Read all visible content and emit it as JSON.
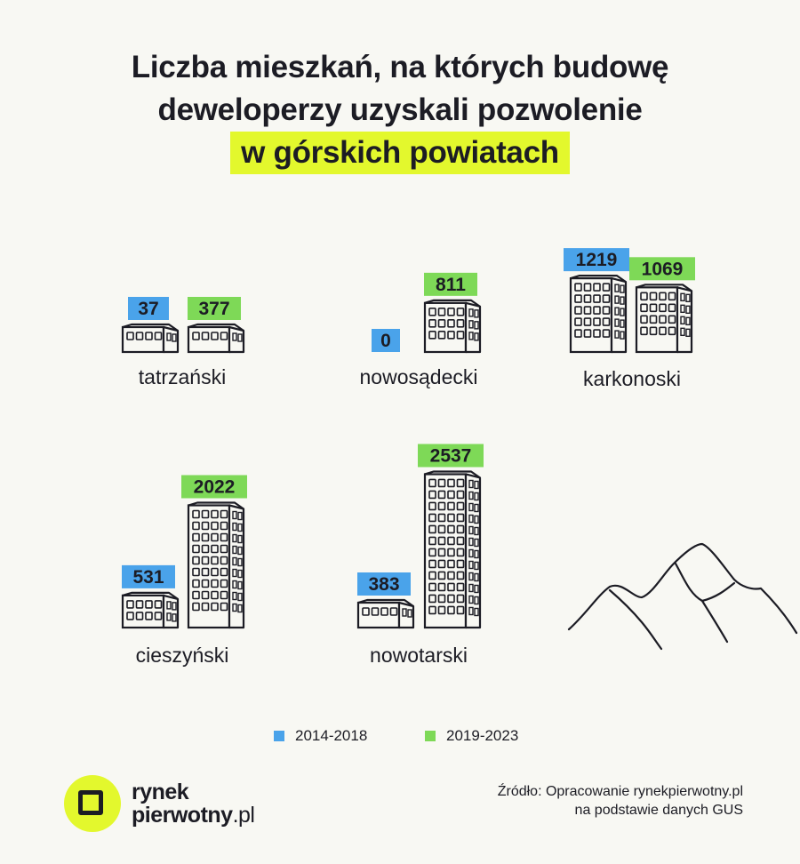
{
  "title": {
    "line1": "Liczba mieszkań, na których budowę",
    "line2": "deweloperzy uzyskali pozwolenie",
    "highlight": "w górskich powiatach"
  },
  "colors": {
    "series_2014_2018": "#4aa3ea",
    "series_2019_2023": "#7ed957",
    "highlight": "#e3f82d",
    "ink": "#1c1c24"
  },
  "chart_data": {
    "type": "bar",
    "title": "Liczba mieszkań, na których budowę deweloperzy uzyskali pozwolenie w górskich powiatach",
    "categories": [
      "tatrzański",
      "nowosądecki",
      "karkonoski",
      "cieszyński",
      "nowotarski"
    ],
    "series": [
      {
        "name": "2014-2018",
        "values": [
          37,
          0,
          1219,
          531,
          383
        ]
      },
      {
        "name": "2019-2023",
        "values": [
          377,
          811,
          1069,
          2022,
          2537
        ]
      }
    ],
    "legend_position": "bottom",
    "grid": false
  },
  "legend": [
    {
      "label": "2014-2018",
      "color": "#4aa3ea"
    },
    {
      "label": "2019-2023",
      "color": "#7ed957"
    }
  ],
  "logo": {
    "word1": "rynek",
    "word2": "pierwotny",
    "suffix": ".pl"
  },
  "source": {
    "line1": "Źródło: Opracowanie rynekpierwotny.pl",
    "line2": "na podstawie danych GUS"
  },
  "icons": {
    "building": "building-icon",
    "mountain": "mountain-icon"
  }
}
